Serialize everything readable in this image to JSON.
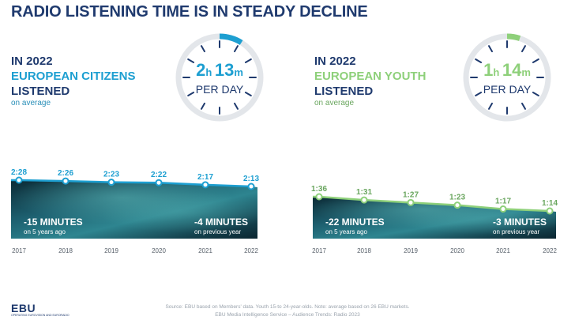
{
  "title": "RADIO LISTENING TIME IS IN STEADY DECLINE",
  "panels": [
    {
      "line1": "IN 2022",
      "line2": "EUROPEAN CITIZENS",
      "line3": "LISTENED",
      "line4": "on average",
      "dial_hours": "2",
      "dial_h_unit": "h",
      "dial_minutes": "13",
      "dial_m_unit": "m",
      "dial_sub": "PER DAY",
      "dial_fill_fraction": 0.089,
      "accent": "#1d9fd1",
      "chart_data": {
        "type": "line",
        "x": [
          "2017",
          "2018",
          "2019",
          "2020",
          "2021",
          "2022"
        ],
        "labels": [
          "2:28",
          "2:26",
          "2:23",
          "2:22",
          "2:17",
          "2:13"
        ],
        "values_minutes": [
          148,
          146,
          143,
          142,
          137,
          133
        ],
        "annotation_left": {
          "big": "-15 MINUTES",
          "small": "on 5 years ago"
        },
        "annotation_right": {
          "big": "-4 MINUTES",
          "small": "on previous year"
        },
        "line_color": "#1d9fd1",
        "label_color": "#1d9fd1"
      }
    },
    {
      "line1": "IN 2022",
      "line2": "EUROPEAN YOUTH",
      "line3": "LISTENED",
      "line4": "on average",
      "dial_hours": "1",
      "dial_h_unit": "h",
      "dial_minutes": "14",
      "dial_m_unit": "m",
      "dial_sub": "PER DAY",
      "dial_fill_fraction": 0.05,
      "accent": "#8ed07a",
      "chart_data": {
        "type": "line",
        "x": [
          "2017",
          "2018",
          "2019",
          "2020",
          "2021",
          "2022"
        ],
        "labels": [
          "1:36",
          "1:31",
          "1:27",
          "1:23",
          "1:17",
          "1:14"
        ],
        "values_minutes": [
          96,
          91,
          87,
          83,
          77,
          74
        ],
        "annotation_left": {
          "big": "-22 MINUTES",
          "small": "on 5 years ago"
        },
        "annotation_right": {
          "big": "-3 MINUTES",
          "small": "on previous year"
        },
        "line_color": "#8ed07a",
        "label_color": "#6aa65f"
      }
    }
  ],
  "footer": {
    "source": "Source: EBU based on Members' data. Youth 15-to 24-year-olds. Note: average based on 26 EBU markets.",
    "service": "EBU Media Intelligence Service – Audience Trends: Radio 2023"
  },
  "logo": {
    "name": "EBU",
    "tagline": "OPERATING EUROVISION AND EURORADIO"
  }
}
